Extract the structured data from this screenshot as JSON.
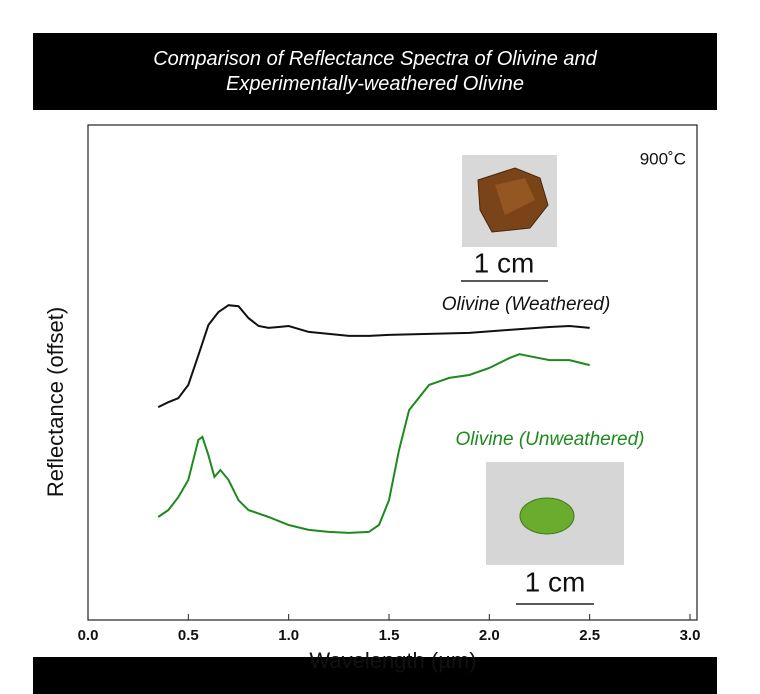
{
  "chart_data": {
    "type": "line",
    "title": "Comparison of Reflectance Spectra of Olivine and Experimentally-weathered Olivine",
    "x_label": "Wavelength (µm)",
    "y_label": "Reflectance (offset)",
    "annotation": "900˚C",
    "scale_labels": [
      "1 cm",
      "1 cm"
    ],
    "xlim": [
      0,
      3.0
    ],
    "ylim": [
      0,
      10
    ],
    "xticks": [
      {
        "value": 0,
        "label": "0.0"
      },
      0.5,
      {
        "value": 1,
        "label": "1.0"
      },
      1.5,
      {
        "value": 2,
        "label": "2.0"
      },
      2.5,
      {
        "value": 3,
        "label": "3.0"
      }
    ],
    "series": [
      {
        "name": "Olivine (Weathered)",
        "color": "#111111",
        "x": [
          0.35,
          0.4,
          0.45,
          0.5,
          0.55,
          0.6,
          0.65,
          0.7,
          0.75,
          0.8,
          0.85,
          0.9,
          0.95,
          1.0,
          1.1,
          1.2,
          1.3,
          1.4,
          1.5,
          1.7,
          1.9,
          2.1,
          2.3,
          2.4,
          2.5
        ],
        "values": [
          4.3,
          4.4,
          4.48,
          4.75,
          5.35,
          5.96,
          6.22,
          6.36,
          6.34,
          6.1,
          5.94,
          5.9,
          5.92,
          5.94,
          5.82,
          5.78,
          5.74,
          5.74,
          5.76,
          5.78,
          5.8,
          5.86,
          5.92,
          5.94,
          5.9
        ]
      },
      {
        "name": "Olivine (Unweathered)",
        "color": "#1e8a1e",
        "x": [
          0.35,
          0.4,
          0.45,
          0.5,
          0.55,
          0.57,
          0.6,
          0.63,
          0.66,
          0.7,
          0.75,
          0.8,
          0.9,
          1.0,
          1.1,
          1.2,
          1.3,
          1.4,
          1.45,
          1.5,
          1.55,
          1.6,
          1.7,
          1.8,
          1.9,
          2.0,
          2.1,
          2.15,
          2.2,
          2.3,
          2.4,
          2.5
        ],
        "values": [
          2.08,
          2.22,
          2.48,
          2.83,
          3.64,
          3.7,
          3.33,
          2.89,
          3.03,
          2.83,
          2.42,
          2.22,
          2.08,
          1.92,
          1.82,
          1.78,
          1.76,
          1.78,
          1.92,
          2.42,
          3.43,
          4.24,
          4.75,
          4.89,
          4.95,
          5.09,
          5.29,
          5.37,
          5.33,
          5.25,
          5.25,
          5.15
        ]
      }
    ]
  }
}
